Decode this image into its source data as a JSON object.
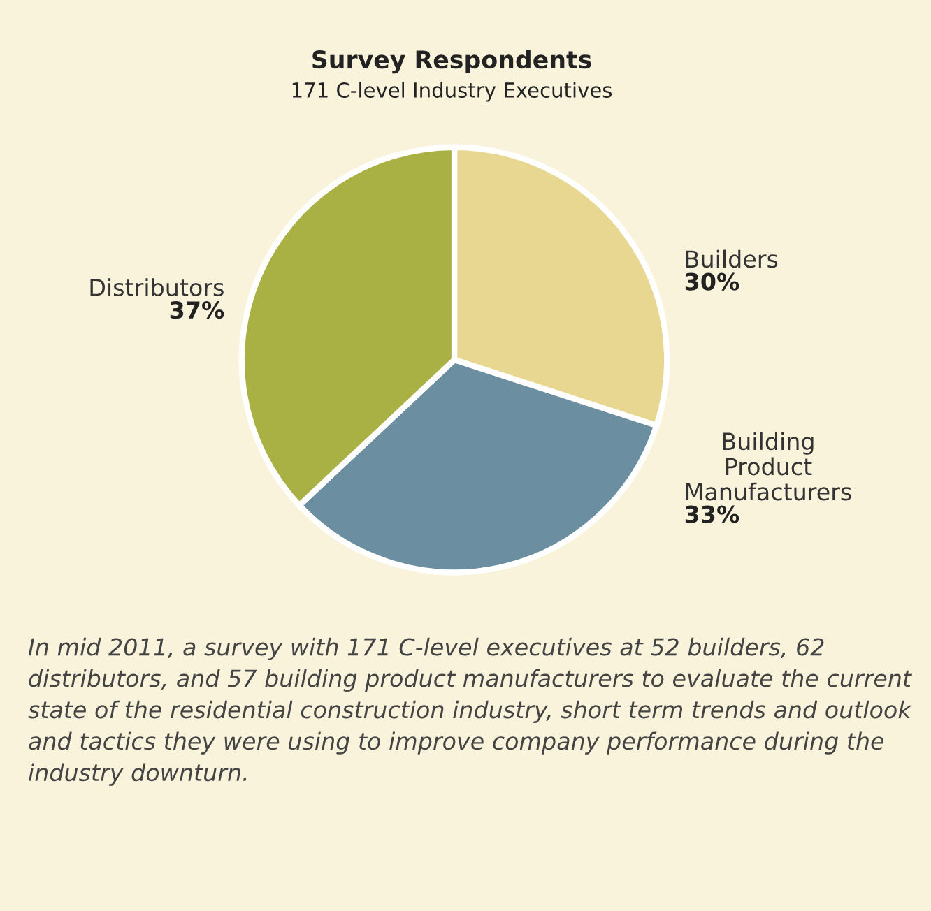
{
  "chart_data": {
    "type": "pie",
    "title": "Survey Respondents",
    "subtitle": "171 C-level Industry Executives",
    "categories": [
      "Builders",
      "Building\nProduct\nManufacturers",
      "Distributors"
    ],
    "values": [
      30,
      33,
      37
    ],
    "colors": [
      "#e8d790",
      "#6b8fa0",
      "#a9b145"
    ],
    "value_labels": [
      "30%",
      "33%",
      "37%"
    ],
    "annotations": [
      "In mid 2011, a survey with 171 C-level executives at 52 builders, 62 distributors, and 57 building product manufacturers to evaluate the current state of the residential construction industry, short term trends and outlook and tactics they were using to improve company performance during the industry downturn."
    ]
  }
}
